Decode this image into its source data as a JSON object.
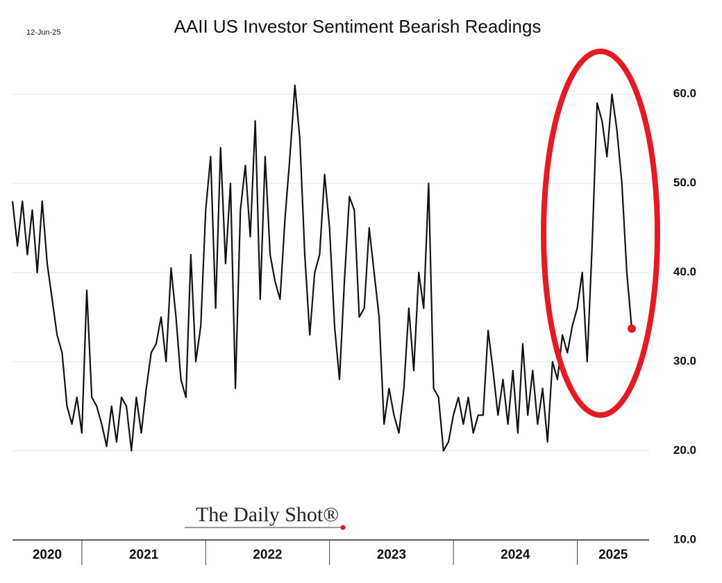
{
  "chart_data": {
    "type": "line",
    "title": "AAII US Investor Sentiment Bearish Readings",
    "date_label": "12-Jun-25",
    "source": "The Daily Shot®",
    "grid": true,
    "xlim": [
      2020.44,
      2025.58
    ],
    "xticks": [
      2021,
      2022,
      2023,
      2024,
      2025
    ],
    "year_labels": [
      2020,
      2021,
      2022,
      2023,
      2024,
      2025
    ],
    "ylim": [
      10,
      62
    ],
    "yticks": [
      {
        "value": 10,
        "label": "10.0"
      },
      {
        "value": 20,
        "label": "20.0"
      },
      {
        "value": 30,
        "label": "30.0"
      },
      {
        "value": 40,
        "label": "40.0"
      },
      {
        "value": 50,
        "label": "50.0"
      },
      {
        "value": 60,
        "label": "60.0"
      }
    ],
    "end_marker_color": "#e31c23",
    "x": [
      2020.44,
      2020.48,
      2020.52,
      2020.56,
      2020.6,
      2020.64,
      2020.68,
      2020.72,
      2020.76,
      2020.8,
      2020.84,
      2020.88,
      2020.92,
      2020.96,
      2021.0,
      2021.04,
      2021.08,
      2021.12,
      2021.16,
      2021.2,
      2021.24,
      2021.28,
      2021.32,
      2021.36,
      2021.4,
      2021.44,
      2021.48,
      2021.52,
      2021.56,
      2021.6,
      2021.64,
      2021.68,
      2021.72,
      2021.76,
      2021.8,
      2021.84,
      2021.88,
      2021.92,
      2021.96,
      2022.0,
      2022.04,
      2022.08,
      2022.12,
      2022.16,
      2022.2,
      2022.24,
      2022.28,
      2022.32,
      2022.36,
      2022.4,
      2022.44,
      2022.48,
      2022.52,
      2022.56,
      2022.6,
      2022.64,
      2022.68,
      2022.72,
      2022.76,
      2022.8,
      2022.84,
      2022.88,
      2022.92,
      2022.96,
      2023.0,
      2023.04,
      2023.08,
      2023.12,
      2023.16,
      2023.2,
      2023.24,
      2023.28,
      2023.32,
      2023.36,
      2023.4,
      2023.44,
      2023.48,
      2023.52,
      2023.56,
      2023.6,
      2023.64,
      2023.68,
      2023.72,
      2023.76,
      2023.8,
      2023.84,
      2023.88,
      2023.92,
      2023.96,
      2024.0,
      2024.04,
      2024.08,
      2024.12,
      2024.16,
      2024.2,
      2024.24,
      2024.28,
      2024.32,
      2024.36,
      2024.4,
      2024.44,
      2024.48,
      2024.52,
      2024.56,
      2024.6,
      2024.64,
      2024.68,
      2024.72,
      2024.76,
      2024.8,
      2024.84,
      2024.88,
      2024.92,
      2024.96,
      2025.0,
      2025.04,
      2025.08,
      2025.12,
      2025.16,
      2025.2,
      2025.24,
      2025.28,
      2025.32,
      2025.36,
      2025.4,
      2025.44
    ],
    "series": [
      {
        "name": "Bearish",
        "color": "#111111",
        "values": [
          48,
          43,
          48,
          42,
          47,
          40,
          48,
          41,
          37,
          33,
          31,
          25,
          23,
          26,
          22,
          38,
          26,
          25,
          23,
          20.5,
          25,
          21,
          26,
          25,
          20,
          26,
          22,
          27,
          31,
          32,
          35,
          30,
          40.5,
          35,
          28,
          26,
          42,
          30,
          34,
          47,
          53,
          36,
          54,
          41,
          50,
          27,
          47,
          52,
          44,
          57,
          37,
          53,
          42,
          39,
          37,
          46,
          53,
          61,
          55,
          42,
          33,
          40,
          42,
          51,
          45,
          34,
          28,
          39,
          48.5,
          47,
          35,
          36,
          45,
          40,
          35,
          23,
          27,
          24,
          22,
          27,
          36,
          29,
          40,
          36,
          50,
          27,
          26,
          20,
          21,
          24,
          26,
          23,
          26,
          22,
          24,
          24,
          33.5,
          29,
          24,
          28,
          23,
          29,
          22,
          32,
          24,
          29,
          23,
          27,
          21,
          30,
          28,
          33,
          31,
          34,
          36,
          40,
          30,
          43,
          59,
          57,
          53,
          60,
          56,
          50,
          40,
          33.7
        ]
      }
    ]
  }
}
